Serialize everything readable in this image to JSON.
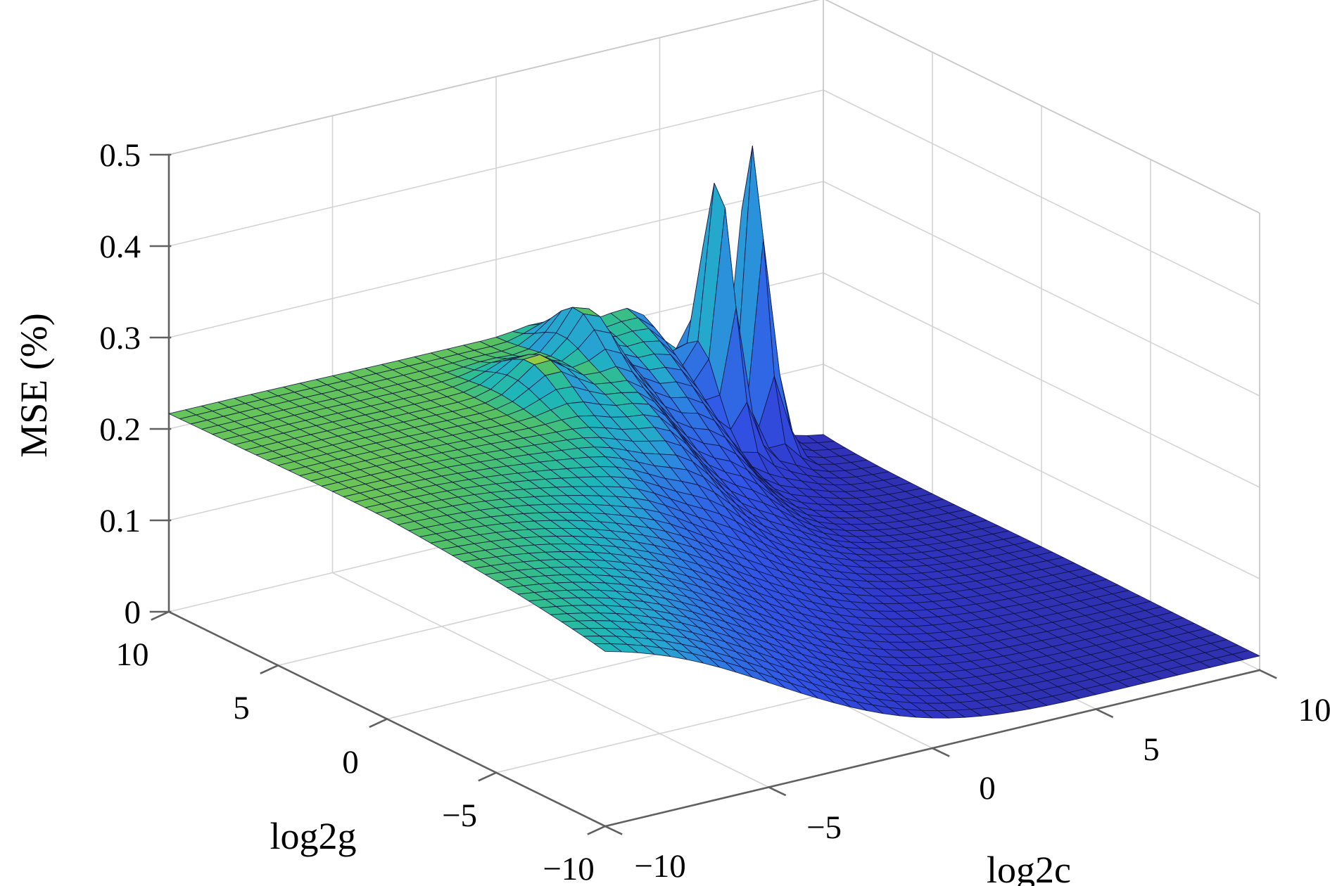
{
  "figure": {
    "background": "#ffffff",
    "grid_color": "#d4d4d4",
    "box_edge_color": "#c9c9c9",
    "axis_color": "#606060",
    "mesh_edge_color": "#0d1240"
  },
  "axes": {
    "x": {
      "label": "log2c",
      "ticks": [
        "−10",
        "−5",
        "0",
        "5",
        "10"
      ],
      "tick_values": [
        -10,
        -5,
        0,
        5,
        10
      ],
      "lim": [
        -10,
        10
      ]
    },
    "y": {
      "label": "log2g",
      "ticks": [
        "10",
        "5",
        "0",
        "−5",
        "−10"
      ],
      "tick_values": [
        10,
        5,
        0,
        -5,
        -10
      ],
      "lim": [
        -10,
        10
      ]
    },
    "z": {
      "label": "MSE (%)",
      "ticks": [
        "0",
        "0.1",
        "0.2",
        "0.3",
        "0.4",
        "0.5"
      ],
      "tick_values": [
        0,
        0.1,
        0.2,
        0.3,
        0.4,
        0.5
      ],
      "lim": [
        0,
        0.5
      ]
    }
  },
  "chart_data": {
    "type": "surface",
    "title": "",
    "xlabel": "log2c",
    "ylabel": "log2g",
    "zlabel": "MSE (%)",
    "x_range": [
      -10,
      10
    ],
    "y_range": [
      -10,
      10
    ],
    "zlim": [
      0,
      0.5
    ],
    "grid_step": 0.5,
    "grid_on": true,
    "legend": "none",
    "features": {
      "plateau_mse_at_low_log2c": 0.215,
      "flat_basin_mse_at_high_log2c": 0.015,
      "back_ridge_mse": 0.2,
      "spike_peaks": [
        {
          "log2c": 6.0,
          "log2g": 8.8,
          "mse": 0.37
        },
        {
          "log2c": 7.6,
          "log2g": 9.5,
          "mse": 0.4
        },
        {
          "log2c": 1.2,
          "log2g": 7.8,
          "mse": 0.27
        },
        {
          "log2c": -1.2,
          "log2g": 6.2,
          "mse": 0.24
        }
      ]
    },
    "surface_model": {
      "basin": 0.015,
      "plateau_height": 0.2,
      "transition_center": {
        "base": 0.5,
        "per_g": 0.55
      },
      "transition_width": {
        "front": 2.6,
        "narrowing": 1.4,
        "gate_center": 2,
        "gate_scale": 2
      },
      "plateau_arch": {
        "amp": 0.006,
        "edge": -6,
        "g_flatten": 14
      },
      "ridge": {
        "amp": 0.02,
        "offset": -1.2,
        "spread": 8,
        "gate_center": 1,
        "gate_scale": 1.6
      },
      "oscillation": {
        "amp": 0.018,
        "freq": 1.9,
        "offset": -0.5,
        "spread": 6,
        "gate_center": 3,
        "gate_scale": 1.5
      },
      "front_dip": {
        "amp": 0.008,
        "center_c": 1,
        "spread": 18,
        "gate_center": -1,
        "gate_scale": 2
      },
      "peaks": [
        {
          "c": 6.0,
          "g": 8.8,
          "amp": 0.26,
          "sc": 0.42,
          "sg": 1.05
        },
        {
          "c": 7.6,
          "g": 9.5,
          "amp": 0.32,
          "sc": 0.38,
          "sg": 0.85
        },
        {
          "c": 1.2,
          "g": 7.8,
          "amp": 0.05,
          "sc": 0.8,
          "sg": 1.4
        },
        {
          "c": -1.2,
          "g": 6.2,
          "amp": 0.035,
          "sc": 1.0,
          "sg": 1.6
        }
      ],
      "clamp": [
        0.004,
        0.42
      ]
    },
    "colormap": {
      "clim": [
        0,
        0.26
      ],
      "stops": [
        [
          0.0,
          "#2f2da0"
        ],
        [
          0.14,
          "#3036c8"
        ],
        [
          0.28,
          "#3155e6"
        ],
        [
          0.4,
          "#2e7ce2"
        ],
        [
          0.5,
          "#27a3d3"
        ],
        [
          0.6,
          "#1db6bb"
        ],
        [
          0.7,
          "#2fbd92"
        ],
        [
          0.8,
          "#55c163"
        ],
        [
          0.9,
          "#8cca45"
        ],
        [
          1.0,
          "#b9d43a"
        ]
      ],
      "steep_face_shift": {
        "gain": 26,
        "pull": 0.55,
        "anchor": 0.17
      }
    }
  }
}
